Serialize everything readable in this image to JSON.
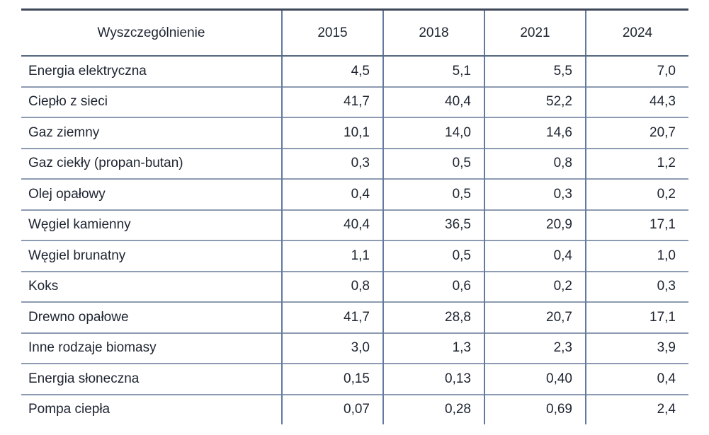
{
  "table": {
    "header": {
      "label_column": "Wyszczególnienie",
      "years": [
        "2015",
        "2018",
        "2021",
        "2024"
      ]
    },
    "rows": [
      {
        "label": "Energia elektryczna",
        "values": [
          "4,5",
          "5,1",
          "5,5",
          "7,0"
        ]
      },
      {
        "label": "Ciepło z sieci",
        "values": [
          "41,7",
          "40,4",
          "52,2",
          "44,3"
        ]
      },
      {
        "label": "Gaz ziemny",
        "values": [
          "10,1",
          "14,0",
          "14,6",
          "20,7"
        ]
      },
      {
        "label": "Gaz ciekły (propan-butan)",
        "values": [
          "0,3",
          "0,5",
          "0,8",
          "1,2"
        ]
      },
      {
        "label": "Olej opałowy",
        "values": [
          "0,4",
          "0,5",
          "0,3",
          "0,2"
        ]
      },
      {
        "label": "Węgiel kamienny",
        "values": [
          "40,4",
          "36,5",
          "20,9",
          "17,1"
        ]
      },
      {
        "label": "Węgiel brunatny",
        "values": [
          "1,1",
          "0,5",
          "0,4",
          "1,0"
        ]
      },
      {
        "label": "Koks",
        "values": [
          "0,8",
          "0,6",
          "0,2",
          "0,3"
        ]
      },
      {
        "label": "Drewno opałowe",
        "values": [
          "41,7",
          "28,8",
          "20,7",
          "17,1"
        ]
      },
      {
        "label": "Inne rodzaje biomasy",
        "values": [
          "3,0",
          "1,3",
          "2,3",
          "3,9"
        ]
      },
      {
        "label": "Energia słoneczna",
        "values": [
          "0,15",
          "0,13",
          "0,40",
          "0,4"
        ]
      },
      {
        "label": "Pompa ciepła",
        "values": [
          "0,07",
          "0,28",
          "0,69",
          "2,4"
        ]
      }
    ]
  },
  "colors": {
    "text": "#1d2430",
    "border_top": "#3d4859",
    "border_header_bottom": "#56687f",
    "border_row": "#8c9bb1",
    "border_column": "#64799f",
    "background": "#ffffff"
  },
  "chart_data": {
    "type": "table",
    "title": "",
    "categories": [
      2015,
      2018,
      2021,
      2024
    ],
    "label_column_header": "Wyszczególnienie",
    "series": [
      {
        "name": "Energia elektryczna",
        "values": [
          4.5,
          5.1,
          5.5,
          7.0
        ]
      },
      {
        "name": "Ciepło z sieci",
        "values": [
          41.7,
          40.4,
          52.2,
          44.3
        ]
      },
      {
        "name": "Gaz ziemny",
        "values": [
          10.1,
          14.0,
          14.6,
          20.7
        ]
      },
      {
        "name": "Gaz ciekły (propan-butan)",
        "values": [
          0.3,
          0.5,
          0.8,
          1.2
        ]
      },
      {
        "name": "Olej opałowy",
        "values": [
          0.4,
          0.5,
          0.3,
          0.2
        ]
      },
      {
        "name": "Węgiel kamienny",
        "values": [
          40.4,
          36.5,
          20.9,
          17.1
        ]
      },
      {
        "name": "Węgiel brunatny",
        "values": [
          1.1,
          0.5,
          0.4,
          1.0
        ]
      },
      {
        "name": "Koks",
        "values": [
          0.8,
          0.6,
          0.2,
          0.3
        ]
      },
      {
        "name": "Drewno opałowe",
        "values": [
          41.7,
          28.8,
          20.7,
          17.1
        ]
      },
      {
        "name": "Inne rodzaje biomasy",
        "values": [
          3.0,
          1.3,
          2.3,
          3.9
        ]
      },
      {
        "name": "Energia słoneczna",
        "values": [
          0.15,
          0.13,
          0.4,
          0.4
        ]
      },
      {
        "name": "Pompa ciepła",
        "values": [
          0.07,
          0.28,
          0.69,
          2.4
        ]
      }
    ],
    "decimal_separator": ",",
    "grid": true,
    "legend_position": "none"
  }
}
